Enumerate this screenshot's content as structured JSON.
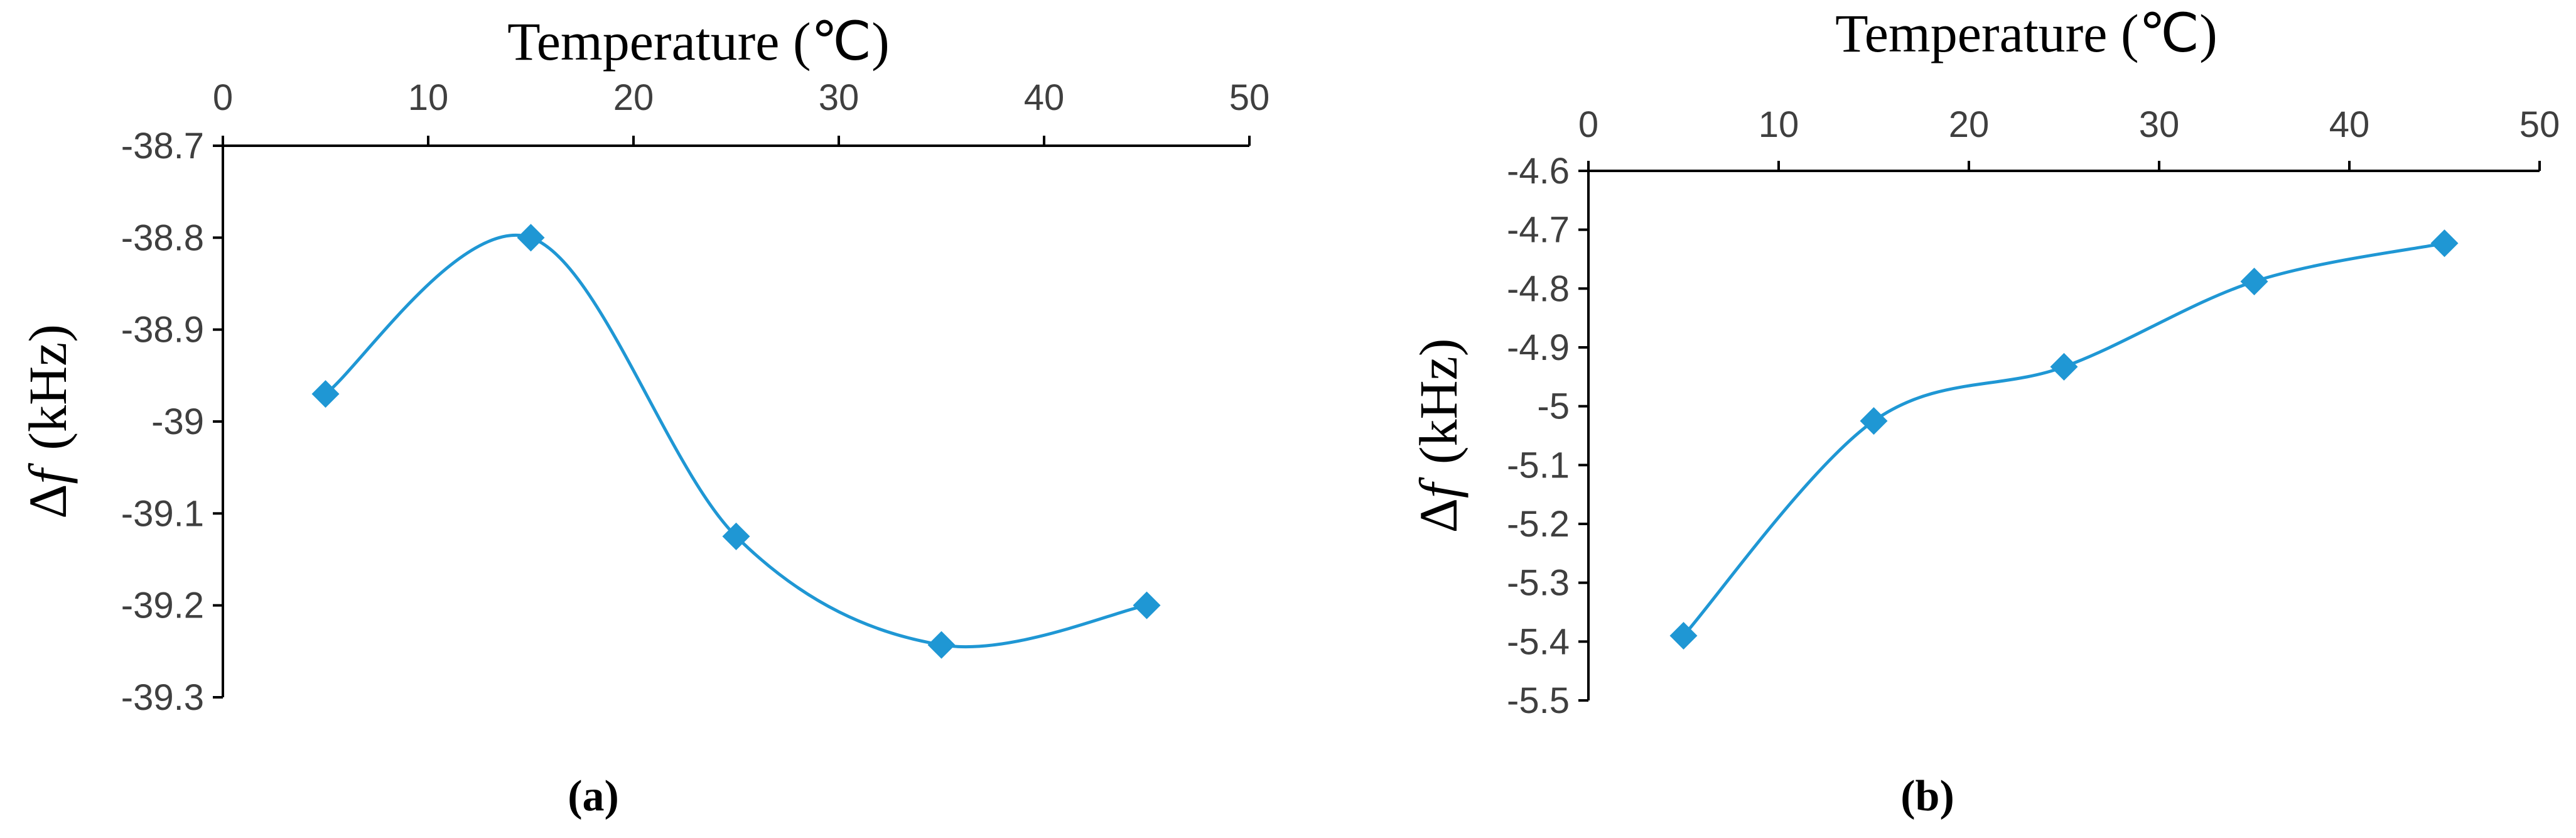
{
  "chart_data": [
    {
      "type": "line",
      "panel_label": "(a)",
      "xlabel": "Temperature (℃)",
      "ylabel_symbol": "Δ",
      "ylabel_italic": "f",
      "ylabel_unit": "(kHz)",
      "xlim": [
        0,
        50
      ],
      "ylim": [
        -39.3,
        -38.7
      ],
      "x_ticks": [
        0,
        10,
        20,
        30,
        40,
        50
      ],
      "y_ticks": [
        -38.7,
        -38.8,
        -38.9,
        -39,
        -39.1,
        -39.2,
        -39.3
      ],
      "x_axis_position": "top",
      "smooth": true,
      "marker": "diamond",
      "color": "#1f97d4",
      "grid": false,
      "x": [
        5,
        15,
        25,
        35,
        45
      ],
      "values": [
        -38.97,
        -38.8,
        -39.125,
        -39.243,
        -39.2
      ]
    },
    {
      "type": "line",
      "panel_label": "(b)",
      "xlabel": "Temperature (℃)",
      "ylabel_symbol": "Δ",
      "ylabel_italic": "f",
      "ylabel_unit": "(kHz)",
      "xlim": [
        0,
        50
      ],
      "ylim": [
        -5.5,
        -4.6
      ],
      "x_ticks": [
        0,
        10,
        20,
        30,
        40,
        50
      ],
      "y_ticks": [
        -4.6,
        -4.7,
        -4.8,
        -4.9,
        -5,
        -5.1,
        -5.2,
        -5.3,
        -5.4,
        -5.5
      ],
      "x_axis_position": "top",
      "smooth": true,
      "marker": "diamond",
      "color": "#1f97d4",
      "grid": false,
      "x": [
        5,
        15,
        25,
        35,
        45
      ],
      "values": [
        -5.39,
        -5.025,
        -4.933,
        -4.788,
        -4.723
      ]
    }
  ]
}
